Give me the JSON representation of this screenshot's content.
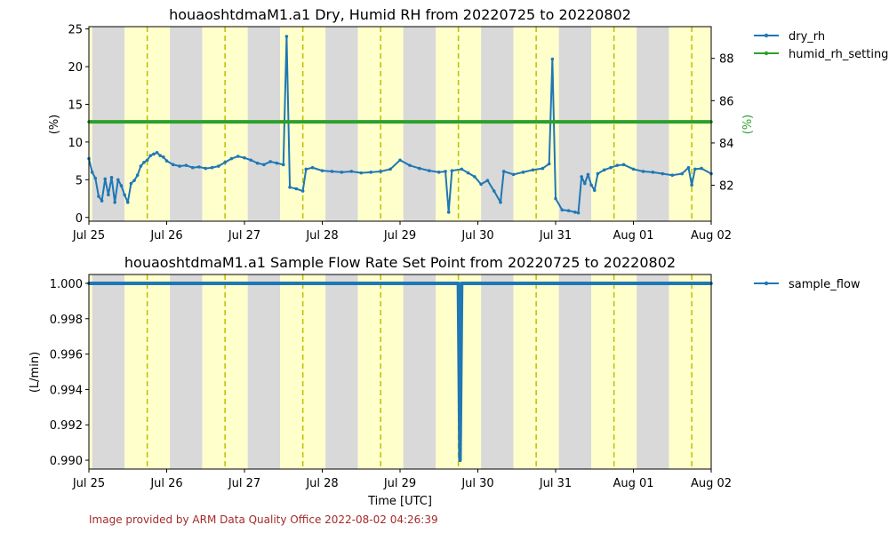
{
  "footer": "Image provided by ARM Data Quality Office 2022-08-02 04:26:39",
  "x_axis": {
    "label": "Time [UTC]",
    "start": "2022-07-25",
    "end": "2022-08-02",
    "ticks": [
      {
        "date": "2022-07-25",
        "label": "Jul 25"
      },
      {
        "date": "2022-07-26",
        "label": "Jul 26"
      },
      {
        "date": "2022-07-27",
        "label": "Jul 27"
      },
      {
        "date": "2022-07-28",
        "label": "Jul 28"
      },
      {
        "date": "2022-07-29",
        "label": "Jul 29"
      },
      {
        "date": "2022-07-30",
        "label": "Jul 30"
      },
      {
        "date": "2022-07-31",
        "label": "Jul 31"
      },
      {
        "date": "2022-08-01",
        "label": "Aug 01"
      },
      {
        "date": "2022-08-02",
        "label": "Aug 02"
      }
    ]
  },
  "background": {
    "night_color": "#d9d9d9",
    "day_color": "#ffffcc",
    "noon_line_color": "#bfbf00",
    "bands": [
      {
        "type": "day",
        "start": "2022-07-25T00:00",
        "end": "2022-07-25T01:00"
      },
      {
        "type": "night",
        "start": "2022-07-25T01:00",
        "end": "2022-07-25T11:00"
      },
      {
        "type": "day",
        "start": "2022-07-25T11:00",
        "end": "2022-07-26T01:00"
      },
      {
        "type": "night",
        "start": "2022-07-26T01:00",
        "end": "2022-07-26T11:00"
      },
      {
        "type": "day",
        "start": "2022-07-26T11:00",
        "end": "2022-07-27T01:00"
      },
      {
        "type": "night",
        "start": "2022-07-27T01:00",
        "end": "2022-07-27T11:00"
      },
      {
        "type": "day",
        "start": "2022-07-27T11:00",
        "end": "2022-07-28T01:00"
      },
      {
        "type": "night",
        "start": "2022-07-28T01:00",
        "end": "2022-07-28T11:00"
      },
      {
        "type": "day",
        "start": "2022-07-28T11:00",
        "end": "2022-07-29T01:00"
      },
      {
        "type": "night",
        "start": "2022-07-29T01:00",
        "end": "2022-07-29T11:00"
      },
      {
        "type": "day",
        "start": "2022-07-29T11:00",
        "end": "2022-07-30T01:00"
      },
      {
        "type": "night",
        "start": "2022-07-30T01:00",
        "end": "2022-07-30T11:00"
      },
      {
        "type": "day",
        "start": "2022-07-30T11:00",
        "end": "2022-07-31T01:00"
      },
      {
        "type": "night",
        "start": "2022-07-31T01:00",
        "end": "2022-07-31T11:00"
      },
      {
        "type": "day",
        "start": "2022-07-31T11:00",
        "end": "2022-08-01T01:00"
      },
      {
        "type": "night",
        "start": "2022-08-01T01:00",
        "end": "2022-08-01T11:00"
      },
      {
        "type": "day",
        "start": "2022-08-01T11:00",
        "end": "2022-08-02T00:00"
      }
    ],
    "noon_lines": [
      "2022-07-25T18:00",
      "2022-07-26T18:00",
      "2022-07-27T18:00",
      "2022-07-28T18:00",
      "2022-07-29T18:00",
      "2022-07-30T18:00",
      "2022-07-31T18:00",
      "2022-08-01T18:00"
    ]
  },
  "chart_data": [
    {
      "type": "line",
      "title": "houaoshtdmaM1.a1 Dry, Humid RH from 20220725 to 20220802",
      "xlabel": "",
      "ylabel": "(%)",
      "ylim": [
        -0.5,
        25.3
      ],
      "yticks": [
        0,
        5,
        10,
        15,
        20,
        25
      ],
      "y2label": "(%)",
      "y2lim": [
        80.3,
        89.5
      ],
      "y2ticks": [
        82,
        84,
        86,
        88
      ],
      "y2color": "#2ca02c",
      "grid": false,
      "legend_placement": "outside-right",
      "series": [
        {
          "name": "dry_rh",
          "color": "#1f77b4",
          "axis": "left",
          "points": [
            [
              "2022-07-25T00:00",
              7.8
            ],
            [
              "2022-07-25T01:00",
              6.0
            ],
            [
              "2022-07-25T02:00",
              5.2
            ],
            [
              "2022-07-25T03:00",
              2.8
            ],
            [
              "2022-07-25T04:00",
              2.2
            ],
            [
              "2022-07-25T05:00",
              5.1
            ],
            [
              "2022-07-25T06:00",
              3.0
            ],
            [
              "2022-07-25T07:00",
              5.3
            ],
            [
              "2022-07-25T08:00",
              2.0
            ],
            [
              "2022-07-25T09:00",
              5.0
            ],
            [
              "2022-07-25T10:00",
              4.2
            ],
            [
              "2022-07-25T11:00",
              3.0
            ],
            [
              "2022-07-25T12:00",
              2.0
            ],
            [
              "2022-07-25T13:00",
              4.5
            ],
            [
              "2022-07-25T14:00",
              4.9
            ],
            [
              "2022-07-25T15:00",
              5.6
            ],
            [
              "2022-07-25T16:00",
              6.8
            ],
            [
              "2022-07-25T17:00",
              7.3
            ],
            [
              "2022-07-25T18:00",
              7.6
            ],
            [
              "2022-07-25T19:00",
              8.2
            ],
            [
              "2022-07-25T20:00",
              8.4
            ],
            [
              "2022-07-25T21:00",
              8.6
            ],
            [
              "2022-07-25T22:00",
              8.2
            ],
            [
              "2022-07-25T23:00",
              8.0
            ],
            [
              "2022-07-26T00:00",
              7.5
            ],
            [
              "2022-07-26T02:00",
              7.0
            ],
            [
              "2022-07-26T04:00",
              6.8
            ],
            [
              "2022-07-26T06:00",
              6.9
            ],
            [
              "2022-07-26T08:00",
              6.6
            ],
            [
              "2022-07-26T10:00",
              6.7
            ],
            [
              "2022-07-26T12:00",
              6.5
            ],
            [
              "2022-07-26T14:00",
              6.6
            ],
            [
              "2022-07-26T16:00",
              6.8
            ],
            [
              "2022-07-26T18:00",
              7.3
            ],
            [
              "2022-07-26T20:00",
              7.8
            ],
            [
              "2022-07-26T22:00",
              8.1
            ],
            [
              "2022-07-27T00:00",
              7.9
            ],
            [
              "2022-07-27T02:00",
              7.6
            ],
            [
              "2022-07-27T04:00",
              7.2
            ],
            [
              "2022-07-27T06:00",
              7.0
            ],
            [
              "2022-07-27T08:00",
              7.4
            ],
            [
              "2022-07-27T10:00",
              7.2
            ],
            [
              "2022-07-27T12:00",
              7.0
            ],
            [
              "2022-07-27T13:00",
              24.0
            ],
            [
              "2022-07-27T14:00",
              4.0
            ],
            [
              "2022-07-27T16:00",
              3.8
            ],
            [
              "2022-07-27T18:00",
              3.5
            ],
            [
              "2022-07-27T19:00",
              6.4
            ],
            [
              "2022-07-27T21:00",
              6.6
            ],
            [
              "2022-07-28T00:00",
              6.2
            ],
            [
              "2022-07-28T03:00",
              6.1
            ],
            [
              "2022-07-28T06:00",
              6.0
            ],
            [
              "2022-07-28T09:00",
              6.1
            ],
            [
              "2022-07-28T12:00",
              5.9
            ],
            [
              "2022-07-28T15:00",
              6.0
            ],
            [
              "2022-07-28T18:00",
              6.1
            ],
            [
              "2022-07-28T21:00",
              6.4
            ],
            [
              "2022-07-29T00:00",
              7.6
            ],
            [
              "2022-07-29T03:00",
              6.9
            ],
            [
              "2022-07-29T06:00",
              6.5
            ],
            [
              "2022-07-29T09:00",
              6.2
            ],
            [
              "2022-07-29T12:00",
              6.0
            ],
            [
              "2022-07-29T14:00",
              6.1
            ],
            [
              "2022-07-29T15:00",
              0.7
            ],
            [
              "2022-07-29T16:00",
              6.2
            ],
            [
              "2022-07-29T19:00",
              6.4
            ],
            [
              "2022-07-29T21:00",
              5.9
            ],
            [
              "2022-07-29T23:00",
              5.4
            ],
            [
              "2022-07-30T01:00",
              4.4
            ],
            [
              "2022-07-30T03:00",
              4.9
            ],
            [
              "2022-07-30T05:00",
              3.5
            ],
            [
              "2022-07-30T07:00",
              2.0
            ],
            [
              "2022-07-30T08:00",
              6.1
            ],
            [
              "2022-07-30T11:00",
              5.7
            ],
            [
              "2022-07-30T14:00",
              6.0
            ],
            [
              "2022-07-30T17:00",
              6.3
            ],
            [
              "2022-07-30T20:00",
              6.5
            ],
            [
              "2022-07-30T22:00",
              7.1
            ],
            [
              "2022-07-30T23:00",
              21.0
            ],
            [
              "2022-07-31T00:00",
              2.5
            ],
            [
              "2022-07-31T02:00",
              1.0
            ],
            [
              "2022-07-31T04:00",
              0.9
            ],
            [
              "2022-07-31T06:00",
              0.7
            ],
            [
              "2022-07-31T07:00",
              0.6
            ],
            [
              "2022-07-31T08:00",
              5.4
            ],
            [
              "2022-07-31T09:00",
              4.5
            ],
            [
              "2022-07-31T10:00",
              5.7
            ],
            [
              "2022-07-31T11:00",
              4.3
            ],
            [
              "2022-07-31T12:00",
              3.6
            ],
            [
              "2022-07-31T13:00",
              5.8
            ],
            [
              "2022-07-31T15:00",
              6.3
            ],
            [
              "2022-07-31T17:00",
              6.6
            ],
            [
              "2022-07-31T19:00",
              6.9
            ],
            [
              "2022-07-31T21:00",
              7.0
            ],
            [
              "2022-08-01T00:00",
              6.4
            ],
            [
              "2022-08-01T03:00",
              6.1
            ],
            [
              "2022-08-01T06:00",
              6.0
            ],
            [
              "2022-08-01T09:00",
              5.8
            ],
            [
              "2022-08-01T12:00",
              5.6
            ],
            [
              "2022-08-01T15:00",
              5.8
            ],
            [
              "2022-08-01T17:00",
              6.6
            ],
            [
              "2022-08-01T18:00",
              4.3
            ],
            [
              "2022-08-01T19:00",
              6.4
            ],
            [
              "2022-08-01T21:00",
              6.5
            ],
            [
              "2022-08-02T00:00",
              5.8
            ]
          ]
        },
        {
          "name": "humid_rh_setting",
          "color": "#2ca02c",
          "axis": "right",
          "points": [
            [
              "2022-07-25T00:00",
              85.0
            ],
            [
              "2022-08-02T00:00",
              85.0
            ]
          ]
        }
      ]
    },
    {
      "type": "line",
      "title": "houaoshtdmaM1.a1 Sample Flow Rate Set Point from 20220725 to 20220802",
      "xlabel": "Time [UTC]",
      "ylabel": "(L/min)",
      "ylim": [
        0.9895,
        1.0005
      ],
      "yticks": [
        0.99,
        0.992,
        0.994,
        0.996,
        0.998,
        1.0
      ],
      "ytick_labels": [
        "0.990",
        "0.992",
        "0.994",
        "0.996",
        "0.998",
        "1.000"
      ],
      "grid": false,
      "legend_placement": "outside-right",
      "series": [
        {
          "name": "sample_flow",
          "color": "#1f77b4",
          "axis": "left",
          "points": [
            [
              "2022-07-25T00:00",
              1.0
            ],
            [
              "2022-07-29T18:00",
              1.0
            ],
            [
              "2022-07-29T18:30",
              0.99
            ],
            [
              "2022-07-29T19:00",
              1.0
            ],
            [
              "2022-08-02T00:00",
              1.0
            ]
          ]
        }
      ]
    }
  ]
}
